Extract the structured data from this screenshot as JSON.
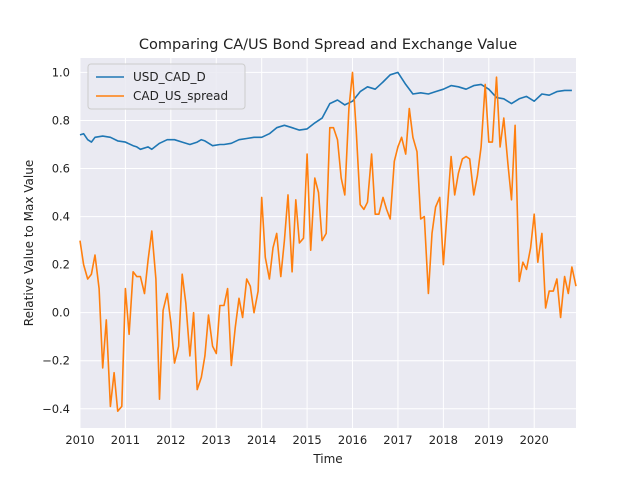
{
  "chart_data": {
    "type": "line",
    "title": "Comparing CA/US Bond Spread and Exchange Value",
    "xlabel": "Time",
    "ylabel": "Relative Value to Max Value",
    "xlim": [
      2010.0,
      2020.92
    ],
    "ylim": [
      -0.48,
      1.06
    ],
    "x_ticks": [
      2010,
      2011,
      2012,
      2013,
      2014,
      2015,
      2016,
      2017,
      2018,
      2019,
      2020
    ],
    "x_tick_labels": [
      "2010",
      "2011",
      "2012",
      "2013",
      "2014",
      "2015",
      "2016",
      "2017",
      "2018",
      "2019",
      "2020"
    ],
    "y_ticks": [
      -0.4,
      -0.2,
      0.0,
      0.2,
      0.4,
      0.6,
      0.8,
      1.0
    ],
    "y_tick_labels": [
      "−0.4",
      "−0.2",
      "0.0",
      "0.2",
      "0.4",
      "0.6",
      "0.8",
      "1.0"
    ],
    "grid": true,
    "legend_position": "upper-left",
    "series": [
      {
        "name": "USD_CAD_D",
        "color": "#1f77b4",
        "points": [
          [
            2010.0,
            0.74
          ],
          [
            2010.08,
            0.745
          ],
          [
            2010.17,
            0.72
          ],
          [
            2010.25,
            0.71
          ],
          [
            2010.33,
            0.73
          ],
          [
            2010.5,
            0.735
          ],
          [
            2010.67,
            0.73
          ],
          [
            2010.83,
            0.715
          ],
          [
            2011.0,
            0.71
          ],
          [
            2011.17,
            0.695
          ],
          [
            2011.25,
            0.69
          ],
          [
            2011.33,
            0.68
          ],
          [
            2011.5,
            0.69
          ],
          [
            2011.58,
            0.68
          ],
          [
            2011.75,
            0.705
          ],
          [
            2011.92,
            0.72
          ],
          [
            2012.08,
            0.72
          ],
          [
            2012.25,
            0.71
          ],
          [
            2012.42,
            0.7
          ],
          [
            2012.58,
            0.71
          ],
          [
            2012.67,
            0.72
          ],
          [
            2012.75,
            0.715
          ],
          [
            2012.92,
            0.695
          ],
          [
            2013.08,
            0.7
          ],
          [
            2013.17,
            0.7
          ],
          [
            2013.33,
            0.705
          ],
          [
            2013.5,
            0.72
          ],
          [
            2013.67,
            0.725
          ],
          [
            2013.83,
            0.73
          ],
          [
            2014.0,
            0.73
          ],
          [
            2014.17,
            0.745
          ],
          [
            2014.33,
            0.77
          ],
          [
            2014.5,
            0.78
          ],
          [
            2014.67,
            0.77
          ],
          [
            2014.83,
            0.76
          ],
          [
            2015.0,
            0.765
          ],
          [
            2015.17,
            0.79
          ],
          [
            2015.33,
            0.81
          ],
          [
            2015.5,
            0.87
          ],
          [
            2015.67,
            0.885
          ],
          [
            2015.83,
            0.865
          ],
          [
            2016.0,
            0.88
          ],
          [
            2016.17,
            0.92
          ],
          [
            2016.33,
            0.94
          ],
          [
            2016.5,
            0.93
          ],
          [
            2016.67,
            0.96
          ],
          [
            2016.83,
            0.99
          ],
          [
            2017.0,
            1.0
          ],
          [
            2017.17,
            0.95
          ],
          [
            2017.33,
            0.91
          ],
          [
            2017.5,
            0.915
          ],
          [
            2017.67,
            0.91
          ],
          [
            2017.83,
            0.92
          ],
          [
            2018.0,
            0.93
          ],
          [
            2018.17,
            0.945
          ],
          [
            2018.33,
            0.94
          ],
          [
            2018.5,
            0.93
          ],
          [
            2018.67,
            0.945
          ],
          [
            2018.83,
            0.95
          ],
          [
            2019.0,
            0.93
          ],
          [
            2019.17,
            0.895
          ],
          [
            2019.33,
            0.89
          ],
          [
            2019.5,
            0.87
          ],
          [
            2019.67,
            0.89
          ],
          [
            2019.83,
            0.9
          ],
          [
            2020.0,
            0.88
          ],
          [
            2020.17,
            0.91
          ],
          [
            2020.33,
            0.905
          ],
          [
            2020.5,
            0.92
          ],
          [
            2020.67,
            0.925
          ],
          [
            2020.83,
            0.925
          ]
        ]
      },
      {
        "name": "CAD_US_spread",
        "color": "#ff7f0e",
        "points": [
          [
            2010.0,
            0.3
          ],
          [
            2010.08,
            0.2
          ],
          [
            2010.17,
            0.14
          ],
          [
            2010.25,
            0.16
          ],
          [
            2010.33,
            0.24
          ],
          [
            2010.42,
            0.1
          ],
          [
            2010.5,
            -0.23
          ],
          [
            2010.58,
            -0.03
          ],
          [
            2010.67,
            -0.39
          ],
          [
            2010.75,
            -0.25
          ],
          [
            2010.83,
            -0.41
          ],
          [
            2010.92,
            -0.39
          ],
          [
            2011.0,
            0.1
          ],
          [
            2011.08,
            -0.09
          ],
          [
            2011.17,
            0.17
          ],
          [
            2011.25,
            0.15
          ],
          [
            2011.33,
            0.15
          ],
          [
            2011.42,
            0.08
          ],
          [
            2011.5,
            0.22
          ],
          [
            2011.58,
            0.34
          ],
          [
            2011.67,
            0.14
          ],
          [
            2011.75,
            -0.36
          ],
          [
            2011.83,
            0.01
          ],
          [
            2011.92,
            0.08
          ],
          [
            2012.0,
            -0.04
          ],
          [
            2012.08,
            -0.21
          ],
          [
            2012.17,
            -0.14
          ],
          [
            2012.25,
            0.16
          ],
          [
            2012.33,
            0.04
          ],
          [
            2012.42,
            -0.18
          ],
          [
            2012.5,
            0.0
          ],
          [
            2012.58,
            -0.32
          ],
          [
            2012.67,
            -0.27
          ],
          [
            2012.75,
            -0.18
          ],
          [
            2012.83,
            -0.01
          ],
          [
            2012.92,
            -0.14
          ],
          [
            2013.0,
            -0.17
          ],
          [
            2013.08,
            0.03
          ],
          [
            2013.17,
            0.03
          ],
          [
            2013.25,
            0.1
          ],
          [
            2013.33,
            -0.22
          ],
          [
            2013.42,
            -0.06
          ],
          [
            2013.5,
            0.06
          ],
          [
            2013.58,
            -0.02
          ],
          [
            2013.67,
            0.14
          ],
          [
            2013.75,
            0.11
          ],
          [
            2013.83,
            0.0
          ],
          [
            2013.92,
            0.09
          ],
          [
            2014.0,
            0.48
          ],
          [
            2014.08,
            0.23
          ],
          [
            2014.17,
            0.14
          ],
          [
            2014.25,
            0.27
          ],
          [
            2014.33,
            0.33
          ],
          [
            2014.42,
            0.15
          ],
          [
            2014.5,
            0.3
          ],
          [
            2014.58,
            0.49
          ],
          [
            2014.67,
            0.17
          ],
          [
            2014.75,
            0.47
          ],
          [
            2014.83,
            0.29
          ],
          [
            2014.92,
            0.31
          ],
          [
            2015.0,
            0.66
          ],
          [
            2015.08,
            0.26
          ],
          [
            2015.17,
            0.56
          ],
          [
            2015.25,
            0.5
          ],
          [
            2015.33,
            0.3
          ],
          [
            2015.42,
            0.33
          ],
          [
            2015.5,
            0.77
          ],
          [
            2015.58,
            0.77
          ],
          [
            2015.67,
            0.72
          ],
          [
            2015.75,
            0.56
          ],
          [
            2015.83,
            0.49
          ],
          [
            2015.92,
            0.85
          ],
          [
            2016.0,
            1.0
          ],
          [
            2016.08,
            0.76
          ],
          [
            2016.17,
            0.45
          ],
          [
            2016.25,
            0.43
          ],
          [
            2016.33,
            0.46
          ],
          [
            2016.42,
            0.66
          ],
          [
            2016.5,
            0.41
          ],
          [
            2016.58,
            0.41
          ],
          [
            2016.67,
            0.48
          ],
          [
            2016.75,
            0.43
          ],
          [
            2016.83,
            0.39
          ],
          [
            2016.92,
            0.63
          ],
          [
            2017.0,
            0.69
          ],
          [
            2017.08,
            0.73
          ],
          [
            2017.17,
            0.66
          ],
          [
            2017.25,
            0.85
          ],
          [
            2017.33,
            0.73
          ],
          [
            2017.42,
            0.67
          ],
          [
            2017.5,
            0.39
          ],
          [
            2017.58,
            0.4
          ],
          [
            2017.67,
            0.08
          ],
          [
            2017.75,
            0.33
          ],
          [
            2017.83,
            0.44
          ],
          [
            2017.92,
            0.48
          ],
          [
            2018.0,
            0.2
          ],
          [
            2018.08,
            0.41
          ],
          [
            2018.17,
            0.65
          ],
          [
            2018.25,
            0.49
          ],
          [
            2018.33,
            0.58
          ],
          [
            2018.42,
            0.64
          ],
          [
            2018.5,
            0.65
          ],
          [
            2018.58,
            0.64
          ],
          [
            2018.67,
            0.49
          ],
          [
            2018.75,
            0.57
          ],
          [
            2018.83,
            0.69
          ],
          [
            2018.92,
            0.95
          ],
          [
            2019.0,
            0.71
          ],
          [
            2019.08,
            0.71
          ],
          [
            2019.17,
            0.98
          ],
          [
            2019.25,
            0.69
          ],
          [
            2019.33,
            0.81
          ],
          [
            2019.42,
            0.62
          ],
          [
            2019.5,
            0.47
          ],
          [
            2019.58,
            0.78
          ],
          [
            2019.67,
            0.13
          ],
          [
            2019.75,
            0.21
          ],
          [
            2019.83,
            0.18
          ],
          [
            2019.92,
            0.27
          ],
          [
            2020.0,
            0.41
          ],
          [
            2020.08,
            0.21
          ],
          [
            2020.17,
            0.33
          ],
          [
            2020.25,
            0.02
          ],
          [
            2020.33,
            0.09
          ],
          [
            2020.42,
            0.09
          ],
          [
            2020.5,
            0.14
          ],
          [
            2020.58,
            -0.02
          ],
          [
            2020.67,
            0.15
          ],
          [
            2020.75,
            0.08
          ],
          [
            2020.83,
            0.19
          ],
          [
            2020.92,
            0.11
          ]
        ]
      }
    ]
  }
}
